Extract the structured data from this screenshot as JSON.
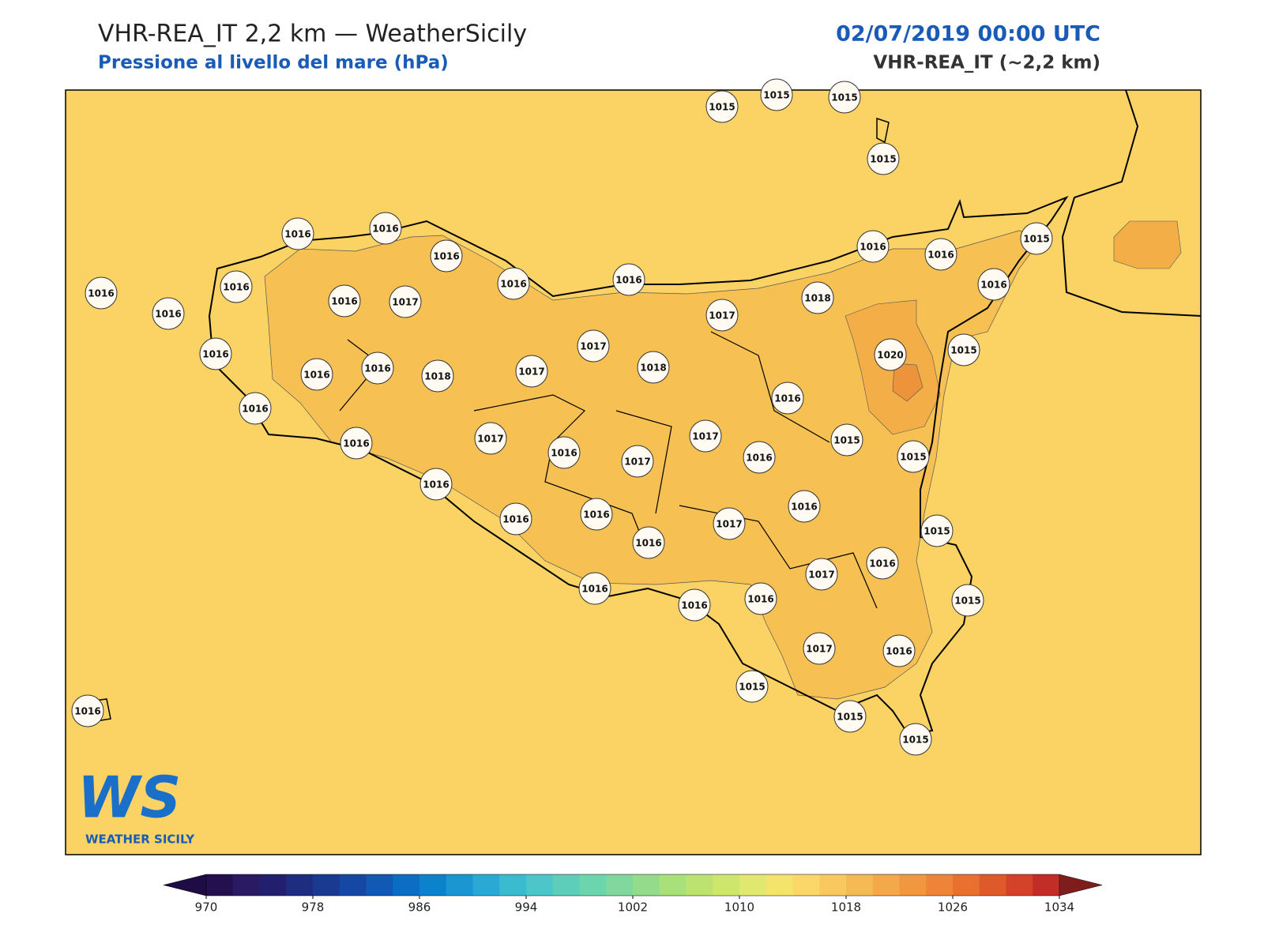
{
  "header": {
    "title": "VHR-REA_IT 2,2 km — WeatherSicily",
    "subtitle": "Pressione al livello del mare (hPa)",
    "datetime": "02/07/2019 00:00 UTC",
    "model": "VHR-REA_IT (~2,2 km)"
  },
  "map": {
    "stations": [
      1015,
      1015,
      1015,
      1015,
      1016,
      1016,
      1016,
      1016,
      1016,
      1016,
      1016,
      1016,
      1016,
      1016,
      1015,
      1016,
      1016,
      1017,
      1017,
      1018,
      1016,
      1017,
      1015,
      1020,
      1016,
      1016,
      1018,
      1017,
      1018,
      1016,
      1016,
      1016,
      1017,
      1017,
      1015,
      1015,
      1016,
      1017,
      1016,
      1016,
      1016,
      1016,
      1016,
      1017,
      1015,
      1016,
      1016,
      1017,
      1016,
      1016,
      1016,
      1015,
      1017,
      1016,
      1015,
      1015,
      1015,
      1016
    ],
    "logo": {
      "mark": "WS",
      "text": "WEATHER SICILY"
    }
  },
  "colorbar": {
    "range": [
      970,
      1034
    ],
    "ticks": [
      970,
      978,
      986,
      994,
      1002,
      1010,
      1018,
      1026,
      1034
    ],
    "colors": [
      "#24104f",
      "#2a1a63",
      "#221f6e",
      "#1e2d80",
      "#1a3a92",
      "#1548a4",
      "#1159b5",
      "#0c6dc4",
      "#0d82cc",
      "#1b96d0",
      "#29a9d3",
      "#3bbbd0",
      "#4cc6c8",
      "#5cceba",
      "#6dd5ad",
      "#80d89e",
      "#94dc8c",
      "#a8e07c",
      "#bce36f",
      "#cfe66c",
      "#e1e870",
      "#f4e46c",
      "#fbd76a",
      "#f9c95f",
      "#f6ba54",
      "#f3a949",
      "#f0973f",
      "#ed8437",
      "#e8712f",
      "#df5a2b",
      "#d34229",
      "#c22d28"
    ],
    "under": "#1f0c45",
    "over": "#7f1d1d"
  }
}
